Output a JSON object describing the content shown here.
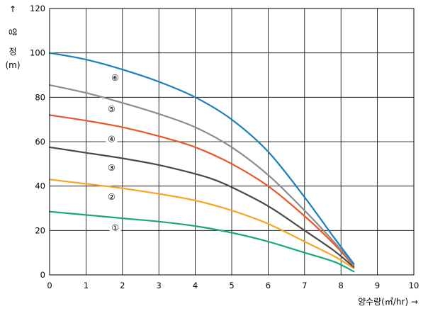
{
  "chart_data": {
    "type": "line",
    "xlabel": "양수량(㎥/hr) →",
    "ylabel": [
      "↑",
      "양",
      "정",
      "(m)"
    ],
    "xlim": [
      0,
      10
    ],
    "ylim": [
      0,
      120
    ],
    "xticks": [
      "0",
      "1",
      "2",
      "3",
      "4",
      "5",
      "6",
      "7",
      "8",
      "9",
      "10"
    ],
    "yticks": [
      "0",
      "20",
      "40",
      "60",
      "80",
      "100",
      "120"
    ],
    "grid": true,
    "legend": "none",
    "series": [
      {
        "name": "①",
        "color": "#1aa584",
        "label_at": [
          1.8,
          21.5
        ],
        "x": [
          0,
          1,
          2,
          3,
          4,
          5,
          6,
          7,
          7.8,
          8.35
        ],
        "y": [
          28.5,
          27,
          25.5,
          24,
          22,
          19,
          15,
          10,
          6,
          1.5
        ]
      },
      {
        "name": "②",
        "color": "#f5a623",
        "label_at": [
          1.7,
          35.5
        ],
        "x": [
          0,
          1,
          2,
          3,
          4,
          5,
          6,
          7,
          7.8,
          8.35
        ],
        "y": [
          43,
          41,
          39,
          36.5,
          33.5,
          29,
          23,
          15,
          8.5,
          3
        ]
      },
      {
        "name": "③",
        "color": "#4a4a4a",
        "label_at": [
          1.7,
          48.5
        ],
        "x": [
          0,
          1,
          2,
          3,
          4,
          4.5,
          5,
          6,
          7,
          7.8,
          8.35
        ],
        "y": [
          57.5,
          55,
          52.5,
          49.5,
          45.5,
          43,
          39.5,
          31,
          20,
          11,
          3.5
        ]
      },
      {
        "name": "④",
        "color": "#e8572a",
        "label_at": [
          1.7,
          61.5
        ],
        "x": [
          0,
          1,
          2,
          3,
          4,
          5,
          6,
          7,
          7.8,
          8.35
        ],
        "y": [
          72,
          69.5,
          66.5,
          62.5,
          57.5,
          50,
          40,
          26.5,
          14,
          4
        ]
      },
      {
        "name": "⑤",
        "color": "#8c8c8c",
        "label_at": [
          1.7,
          75
        ],
        "x": [
          0,
          1,
          2,
          3,
          4,
          5,
          6,
          7,
          7.8,
          8.35
        ],
        "y": [
          85.5,
          82,
          77.5,
          72.5,
          66.5,
          57.5,
          45,
          29,
          15,
          4.5
        ]
      },
      {
        "name": "⑥",
        "color": "#1a7fba",
        "label_at": [
          1.8,
          89
        ],
        "x": [
          0,
          1,
          2,
          3,
          4,
          5,
          6,
          7,
          7.8,
          8.35
        ],
        "y": [
          100,
          97,
          92.5,
          87,
          80,
          70,
          55.5,
          35,
          17,
          5
        ]
      }
    ]
  }
}
